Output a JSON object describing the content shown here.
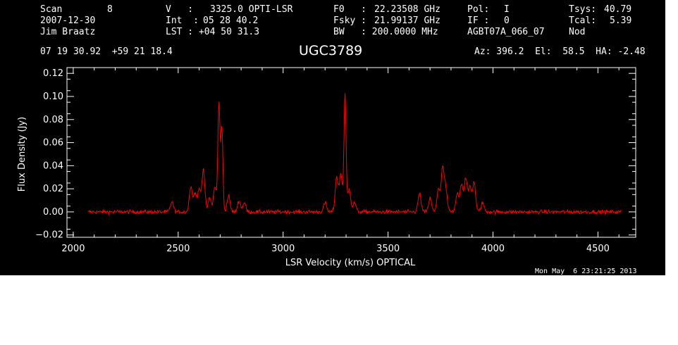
{
  "header": {
    "row1": [
      {
        "label": "Scan",
        "value": "8"
      },
      {
        "label": "V   :",
        "value": "3325.0 OPTI-LSR"
      },
      {
        "label": "F0   :",
        "value": "22.23508 GHz"
      },
      {
        "label": "Pol:",
        "value": "I"
      },
      {
        "label": "Tsys:",
        "value": "40.79"
      }
    ],
    "row2": [
      {
        "label": "2007-12-30"
      },
      {
        "label": "Int  :",
        "value": "05 28 40.2"
      },
      {
        "label": "Fsky :",
        "value": "21.99137 GHz"
      },
      {
        "label": "IF :",
        "value": "0"
      },
      {
        "label": "Tcal:",
        "value": "5.39"
      }
    ],
    "row3": [
      {
        "label": "Jim Braatz"
      },
      {
        "label": "LST : +04 50 31.3"
      },
      {
        "label": "BW   : 200.0000 MHz"
      },
      {
        "label": "AGBT07A_066_07"
      },
      {
        "label": "Nod"
      }
    ],
    "coords": "07 19 30.92  +59 21 18.4",
    "source_name": "UGC3789",
    "pointing": "Az: 396.2  El:  58.5  HA: -2.48"
  },
  "timestamp": "Mon May  6 23:21:25 2013",
  "colors": {
    "background": "#000000",
    "axes": "#ffffff",
    "spectrum": "#ff0000"
  },
  "chart_data": {
    "type": "line",
    "xlabel": "LSR Velocity (km/s) OPTICAL",
    "ylabel": "Flux Density (Jy)",
    "xlim": [
      1970,
      4680
    ],
    "ylim": [
      -0.022,
      0.125
    ],
    "x_ticks": [
      2000,
      2500,
      3000,
      3500,
      4000,
      4500
    ],
    "x_tick_labels": [
      "2000",
      "2500",
      "3000",
      "3500",
      "4000",
      "4500"
    ],
    "y_ticks": [
      -0.02,
      0.0,
      0.02,
      0.04,
      0.06,
      0.08,
      0.1,
      0.12
    ],
    "y_tick_labels": [
      "−0.02",
      "0.00",
      "0.02",
      "0.04",
      "0.06",
      "0.08",
      "0.10",
      "0.12"
    ],
    "grid": false,
    "series": [
      {
        "color": "#ff0000",
        "x_range": [
          2070,
          4610
        ],
        "baseline": 0.0,
        "noise_rms": 0.0012,
        "peaks": [
          {
            "x": 2470,
            "y": 0.009
          },
          {
            "x": 2560,
            "y": 0.022
          },
          {
            "x": 2580,
            "y": 0.016
          },
          {
            "x": 2600,
            "y": 0.019
          },
          {
            "x": 2620,
            "y": 0.037
          },
          {
            "x": 2650,
            "y": 0.012
          },
          {
            "x": 2675,
            "y": 0.022
          },
          {
            "x": 2694,
            "y": 0.094
          },
          {
            "x": 2708,
            "y": 0.072
          },
          {
            "x": 2740,
            "y": 0.014
          },
          {
            "x": 2790,
            "y": 0.01
          },
          {
            "x": 2815,
            "y": 0.008
          },
          {
            "x": 3200,
            "y": 0.008
          },
          {
            "x": 3255,
            "y": 0.03
          },
          {
            "x": 3275,
            "y": 0.033
          },
          {
            "x": 3295,
            "y": 0.102
          },
          {
            "x": 3315,
            "y": 0.02
          },
          {
            "x": 3340,
            "y": 0.008
          },
          {
            "x": 3650,
            "y": 0.016
          },
          {
            "x": 3700,
            "y": 0.012
          },
          {
            "x": 3740,
            "y": 0.02
          },
          {
            "x": 3760,
            "y": 0.037
          },
          {
            "x": 3775,
            "y": 0.019
          },
          {
            "x": 3830,
            "y": 0.016
          },
          {
            "x": 3850,
            "y": 0.024
          },
          {
            "x": 3870,
            "y": 0.029
          },
          {
            "x": 3890,
            "y": 0.022
          },
          {
            "x": 3910,
            "y": 0.026
          },
          {
            "x": 3950,
            "y": 0.008
          }
        ]
      }
    ]
  }
}
